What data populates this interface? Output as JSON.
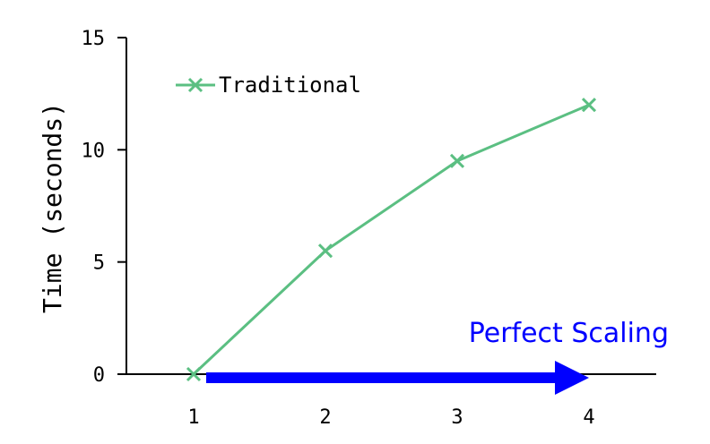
{
  "chart_data": {
    "type": "line",
    "title": "",
    "xlabel": "",
    "ylabel": "Time (seconds)",
    "x": [
      1,
      2,
      3,
      4
    ],
    "xticks": [
      "1",
      "2",
      "3",
      "4"
    ],
    "xlim": [
      1,
      4
    ],
    "ylim": [
      0,
      15
    ],
    "yticks": [
      "0",
      "5",
      "10",
      "15"
    ],
    "grid": false,
    "legend": "top-left",
    "series": [
      {
        "name": "Traditional",
        "values": [
          0,
          5.5,
          9.5,
          12
        ],
        "color": "#5bbf82",
        "marker": "x"
      }
    ],
    "annotation": {
      "text": "Perfect Scaling",
      "color": "#0000ff",
      "arrow_from": [
        1,
        0
      ],
      "arrow_to": [
        4,
        0
      ]
    }
  }
}
